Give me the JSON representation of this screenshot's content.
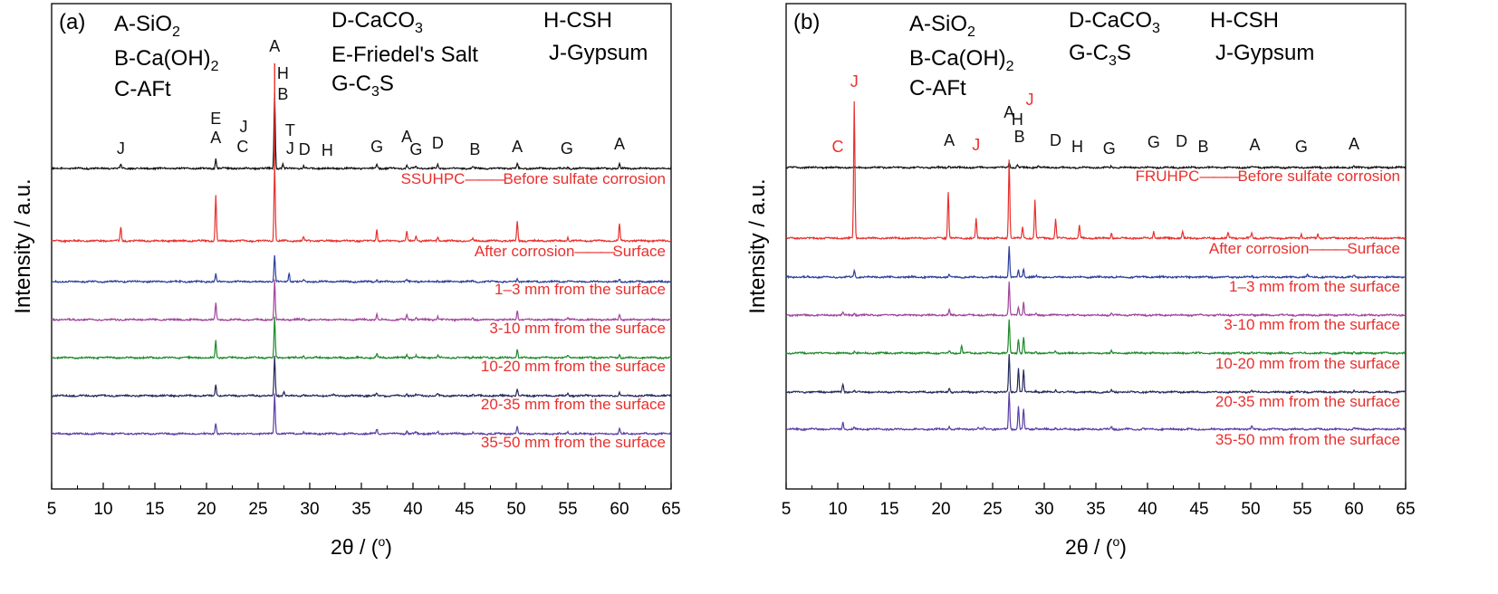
{
  "figure": {
    "colors": {
      "red": "#e8302d",
      "black": "#111111",
      "blue": "#2c3f9a",
      "purple": "#a0449c",
      "green": "#1d8a2a",
      "navy": "#252a5a",
      "violet": "#5a3ea5"
    }
  },
  "chart_data": [
    {
      "type": "line",
      "panel_label": "(a)",
      "xlabel_base": "2θ / (",
      "xlabel_degree": "o",
      "xlabel_close": ")",
      "ylabel": "Intensity / a.u.",
      "xlim": [
        5,
        65
      ],
      "x_ticks": [
        "5",
        "10",
        "15",
        "20",
        "25",
        "30",
        "35",
        "40",
        "45",
        "50",
        "55",
        "60",
        "65"
      ],
      "y_ticks_shown": false,
      "grid": false,
      "legend": [
        {
          "base": "A-SiO",
          "sub": "2",
          "tail": ""
        },
        {
          "base": "B-Ca(OH)",
          "sub": "2",
          "tail": ""
        },
        {
          "base": "C-AFt",
          "sub": "",
          "tail": ""
        },
        {
          "base": "D-CaCO",
          "sub": "3",
          "tail": ""
        },
        {
          "base": "E-Friedel's Salt",
          "sub": "",
          "tail": ""
        },
        {
          "base": "G-C",
          "sub": "3",
          "tail": "S"
        },
        {
          "base": "H-CSH",
          "sub": "",
          "tail": ""
        },
        {
          "base": "J-Gypsum",
          "sub": "",
          "tail": ""
        }
      ],
      "peak_annotations": [
        {
          "x": 11.7,
          "text": "J",
          "color": "black"
        },
        {
          "x": 20.9,
          "text": "E",
          "color": "black"
        },
        {
          "x": 20.9,
          "text": "A",
          "color": "black"
        },
        {
          "x": 23.6,
          "text": "J",
          "color": "black"
        },
        {
          "x": 23.5,
          "text": "C",
          "color": "black"
        },
        {
          "x": 26.6,
          "text": "A",
          "color": "black"
        },
        {
          "x": 27.4,
          "text": "H",
          "color": "black"
        },
        {
          "x": 27.4,
          "text": "B",
          "color": "black"
        },
        {
          "x": 28.1,
          "text": "T",
          "color": "black"
        },
        {
          "x": 28.1,
          "text": "J",
          "color": "black"
        },
        {
          "x": 29.5,
          "text": "D",
          "color": "black"
        },
        {
          "x": 31.7,
          "text": "H",
          "color": "black"
        },
        {
          "x": 36.5,
          "text": "G",
          "color": "black"
        },
        {
          "x": 39.4,
          "text": "A",
          "color": "black"
        },
        {
          "x": 40.3,
          "text": "G",
          "color": "black"
        },
        {
          "x": 42.4,
          "text": "D",
          "color": "black"
        },
        {
          "x": 46.0,
          "text": "B",
          "color": "black"
        },
        {
          "x": 50.1,
          "text": "A",
          "color": "black"
        },
        {
          "x": 54.9,
          "text": "G",
          "color": "black"
        },
        {
          "x": 60.0,
          "text": "A",
          "color": "black"
        }
      ],
      "series": [
        {
          "label_left": "SSUHPC",
          "label_right": "Before sulfate corrosion",
          "color": "black",
          "peaks": [
            [
              11.7,
              0.05
            ],
            [
              20.9,
              0.13
            ],
            [
              26.6,
              1.0
            ],
            [
              27.4,
              0.06
            ],
            [
              29.4,
              0.03
            ],
            [
              36.5,
              0.05
            ],
            [
              39.4,
              0.04
            ],
            [
              40.3,
              0.03
            ],
            [
              42.4,
              0.05
            ],
            [
              45.8,
              0.02
            ],
            [
              50.1,
              0.07
            ],
            [
              55.0,
              0.02
            ],
            [
              60.0,
              0.06
            ]
          ]
        },
        {
          "label_left": "After corrosion",
          "label_right": "Surface",
          "color": "red",
          "peaks": [
            [
              11.7,
              0.18
            ],
            [
              20.9,
              0.6
            ],
            [
              26.6,
              1.0
            ],
            [
              29.4,
              0.05
            ],
            [
              36.5,
              0.15
            ],
            [
              39.4,
              0.12
            ],
            [
              40.3,
              0.06
            ],
            [
              42.4,
              0.05
            ],
            [
              45.8,
              0.03
            ],
            [
              50.1,
              0.26
            ],
            [
              55.0,
              0.05
            ],
            [
              60.0,
              0.22
            ]
          ]
        },
        {
          "label_left": "1–3 mm from the surface",
          "label_right": "",
          "color": "blue",
          "peaks": [
            [
              11.7,
              0.03
            ],
            [
              20.9,
              0.28
            ],
            [
              26.6,
              1.0
            ],
            [
              28.0,
              0.32
            ],
            [
              29.4,
              0.04
            ],
            [
              36.5,
              0.08
            ],
            [
              39.4,
              0.06
            ],
            [
              40.3,
              0.04
            ],
            [
              42.4,
              0.05
            ],
            [
              45.8,
              0.03
            ],
            [
              50.1,
              0.13
            ],
            [
              55.0,
              0.03
            ],
            [
              60.0,
              0.08
            ]
          ]
        },
        {
          "label_left": "3-10 mm from the surface",
          "label_right": "",
          "color": "purple",
          "peaks": [
            [
              20.9,
              0.42
            ],
            [
              26.6,
              1.0
            ],
            [
              29.4,
              0.03
            ],
            [
              36.5,
              0.15
            ],
            [
              39.4,
              0.12
            ],
            [
              40.3,
              0.07
            ],
            [
              42.4,
              0.08
            ],
            [
              45.8,
              0.04
            ],
            [
              50.1,
              0.24
            ],
            [
              55.0,
              0.04
            ],
            [
              60.0,
              0.14
            ]
          ]
        },
        {
          "label_left": "10-20 mm from the surface",
          "label_right": "",
          "color": "green",
          "peaks": [
            [
              20.9,
              0.42
            ],
            [
              26.6,
              1.0
            ],
            [
              29.4,
              0.04
            ],
            [
              36.5,
              0.1
            ],
            [
              39.4,
              0.08
            ],
            [
              40.3,
              0.05
            ],
            [
              42.4,
              0.06
            ],
            [
              45.8,
              0.03
            ],
            [
              50.1,
              0.22
            ],
            [
              55.0,
              0.04
            ],
            [
              60.0,
              0.1
            ]
          ]
        },
        {
          "label_left": "20-35 mm from the surface",
          "label_right": "",
          "color": "navy",
          "peaks": [
            [
              20.9,
              0.28
            ],
            [
              26.6,
              1.0
            ],
            [
              27.5,
              0.1
            ],
            [
              29.4,
              0.04
            ],
            [
              32.3,
              0.02
            ],
            [
              36.5,
              0.06
            ],
            [
              39.4,
              0.06
            ],
            [
              40.3,
              0.03
            ],
            [
              42.4,
              0.05
            ],
            [
              45.8,
              0.03
            ],
            [
              50.1,
              0.17
            ],
            [
              55.0,
              0.05
            ],
            [
              60.0,
              0.08
            ]
          ]
        },
        {
          "label_left": "35-50 mm from the surface",
          "label_right": "",
          "color": "violet",
          "peaks": [
            [
              20.9,
              0.28
            ],
            [
              26.6,
              1.0
            ],
            [
              29.4,
              0.04
            ],
            [
              36.5,
              0.12
            ],
            [
              39.4,
              0.08
            ],
            [
              40.3,
              0.05
            ],
            [
              42.4,
              0.05
            ],
            [
              45.8,
              0.03
            ],
            [
              50.1,
              0.18
            ],
            [
              55.0,
              0.05
            ],
            [
              60.0,
              0.12
            ]
          ]
        }
      ]
    },
    {
      "type": "line",
      "panel_label": "(b)",
      "xlabel_base": "2θ / (",
      "xlabel_degree": "o",
      "xlabel_close": ")",
      "ylabel": "Intensity / a.u.",
      "xlim": [
        5,
        65
      ],
      "x_ticks": [
        "5",
        "10",
        "15",
        "20",
        "25",
        "30",
        "35",
        "40",
        "45",
        "50",
        "55",
        "60",
        "65"
      ],
      "y_ticks_shown": false,
      "grid": false,
      "legend": [
        {
          "base": "A-SiO",
          "sub": "2",
          "tail": ""
        },
        {
          "base": "B-Ca(OH)",
          "sub": "2",
          "tail": ""
        },
        {
          "base": "C-AFt",
          "sub": "",
          "tail": ""
        },
        {
          "base": "D-CaCO",
          "sub": "3",
          "tail": ""
        },
        {
          "base": "G-C",
          "sub": "3",
          "tail": "S"
        },
        {
          "base": "H-CSH",
          "sub": "",
          "tail": ""
        },
        {
          "base": "J-Gypsum",
          "sub": "",
          "tail": ""
        }
      ],
      "peak_annotations": [
        {
          "x": 10.0,
          "text": "C",
          "color": "red"
        },
        {
          "x": 11.6,
          "text": "J",
          "color": "red"
        },
        {
          "x": 20.8,
          "text": "A",
          "color": "black"
        },
        {
          "x": 23.4,
          "text": "J",
          "color": "red"
        },
        {
          "x": 26.6,
          "text": "A",
          "color": "black"
        },
        {
          "x": 27.4,
          "text": "H",
          "color": "black"
        },
        {
          "x": 28.6,
          "text": "J",
          "color": "red"
        },
        {
          "x": 27.6,
          "text": "B",
          "color": "black"
        },
        {
          "x": 31.1,
          "text": "D",
          "color": "black"
        },
        {
          "x": 33.2,
          "text": "H",
          "color": "black"
        },
        {
          "x": 36.3,
          "text": "G",
          "color": "black"
        },
        {
          "x": 40.6,
          "text": "G",
          "color": "black"
        },
        {
          "x": 43.3,
          "text": "D",
          "color": "black"
        },
        {
          "x": 45.4,
          "text": "B",
          "color": "black"
        },
        {
          "x": 50.4,
          "text": "A",
          "color": "black"
        },
        {
          "x": 54.9,
          "text": "G",
          "color": "black"
        },
        {
          "x": 60.0,
          "text": "A",
          "color": "black"
        }
      ],
      "series": [
        {
          "label_left": "FRUHPC",
          "label_right": "Before sulfate corrosion",
          "color": "black",
          "peaks": [
            [
              20.8,
              0.03
            ],
            [
              26.6,
              0.08
            ],
            [
              27.4,
              0.05
            ],
            [
              29.4,
              0.02
            ],
            [
              36.5,
              0.02
            ],
            [
              50.1,
              0.02
            ],
            [
              60.0,
              0.02
            ]
          ]
        },
        {
          "label_left": "After corrosion",
          "label_right": "Surface",
          "color": "red",
          "peaks": [
            [
              11.6,
              1.0
            ],
            [
              20.7,
              0.34
            ],
            [
              23.4,
              0.14
            ],
            [
              26.6,
              0.58
            ],
            [
              27.9,
              0.08
            ],
            [
              29.1,
              0.28
            ],
            [
              31.1,
              0.14
            ],
            [
              33.4,
              0.09
            ],
            [
              36.5,
              0.04
            ],
            [
              40.6,
              0.05
            ],
            [
              43.4,
              0.05
            ],
            [
              47.8,
              0.04
            ],
            [
              50.1,
              0.04
            ],
            [
              54.9,
              0.03
            ],
            [
              56.5,
              0.03
            ]
          ]
        },
        {
          "label_left": "1–3 mm from the surface",
          "label_right": "",
          "color": "blue",
          "peaks": [
            [
              11.6,
              0.17
            ],
            [
              20.8,
              0.07
            ],
            [
              26.6,
              0.76
            ],
            [
              27.5,
              0.16
            ],
            [
              28.0,
              0.21
            ],
            [
              29.2,
              0.03
            ],
            [
              36.5,
              0.03
            ],
            [
              50.1,
              0.04
            ],
            [
              55.5,
              0.05
            ],
            [
              60.0,
              0.05
            ]
          ]
        },
        {
          "label_left": "3-10 mm from the surface",
          "label_right": "",
          "color": "purple",
          "peaks": [
            [
              10.5,
              0.06
            ],
            [
              11.6,
              0.05
            ],
            [
              20.8,
              0.15
            ],
            [
              26.6,
              0.88
            ],
            [
              27.5,
              0.22
            ],
            [
              28.0,
              0.36
            ],
            [
              29.2,
              0.04
            ],
            [
              36.5,
              0.05
            ],
            [
              50.1,
              0.04
            ],
            [
              60.0,
              0.04
            ]
          ]
        },
        {
          "label_left": "10-20 mm from the surface",
          "label_right": "",
          "color": "green",
          "peaks": [
            [
              11.6,
              0.04
            ],
            [
              20.8,
              0.06
            ],
            [
              22.0,
              0.2
            ],
            [
              26.6,
              0.88
            ],
            [
              27.5,
              0.38
            ],
            [
              28.0,
              0.42
            ],
            [
              29.2,
              0.04
            ],
            [
              31.1,
              0.05
            ],
            [
              36.5,
              0.06
            ],
            [
              39.5,
              0.03
            ],
            [
              50.1,
              0.04
            ],
            [
              60.0,
              0.03
            ]
          ]
        },
        {
          "label_left": "20-35 mm from the surface",
          "label_right": "",
          "color": "navy",
          "peaks": [
            [
              10.5,
              0.2
            ],
            [
              11.6,
              0.05
            ],
            [
              20.8,
              0.1
            ],
            [
              26.6,
              1.0
            ],
            [
              27.5,
              0.64
            ],
            [
              28.0,
              0.57
            ],
            [
              29.2,
              0.04
            ],
            [
              31.1,
              0.06
            ],
            [
              36.5,
              0.04
            ],
            [
              50.1,
              0.04
            ],
            [
              60.0,
              0.05
            ]
          ]
        },
        {
          "label_left": "35-50 mm from the surface",
          "label_right": "",
          "color": "violet",
          "peaks": [
            [
              10.5,
              0.18
            ],
            [
              11.6,
              0.04
            ],
            [
              20.8,
              0.08
            ],
            [
              23.6,
              0.06
            ],
            [
              24.2,
              0.04
            ],
            [
              26.6,
              1.0
            ],
            [
              27.5,
              0.6
            ],
            [
              28.0,
              0.54
            ],
            [
              29.2,
              0.05
            ],
            [
              31.1,
              0.04
            ],
            [
              36.5,
              0.07
            ],
            [
              39.6,
              0.04
            ],
            [
              50.1,
              0.07
            ],
            [
              55.0,
              0.03
            ],
            [
              60.0,
              0.04
            ]
          ]
        }
      ]
    }
  ]
}
